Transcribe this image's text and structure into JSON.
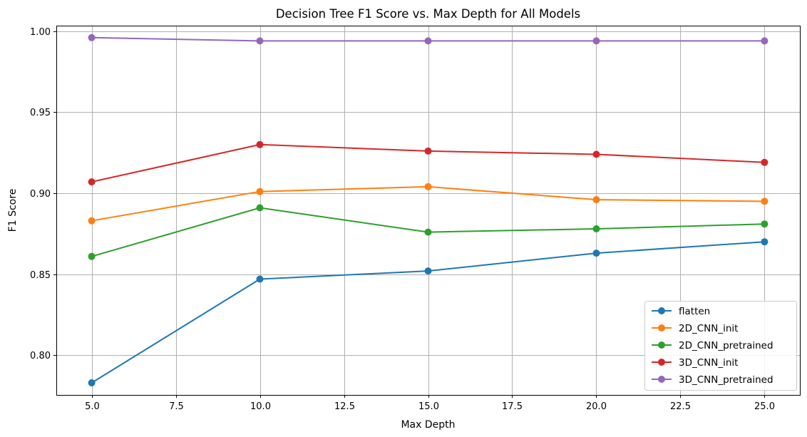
{
  "chart_data": {
    "type": "line",
    "title": "Decision Tree F1 Score vs. Max Depth for All Models",
    "xlabel": "Max Depth",
    "ylabel": "F1 Score",
    "x": [
      5,
      10,
      15,
      20,
      25
    ],
    "xlim": [
      3.95,
      26.05
    ],
    "ylim": [
      0.7755,
      1.0034
    ],
    "xticks": [
      5.0,
      7.5,
      10.0,
      12.5,
      15.0,
      17.5,
      20.0,
      22.5,
      25.0
    ],
    "xtick_labels": [
      "5.0",
      "7.5",
      "10.0",
      "12.5",
      "15.0",
      "17.5",
      "20.0",
      "22.5",
      "25.0"
    ],
    "yticks": [
      0.8,
      0.85,
      0.9,
      0.95,
      1.0
    ],
    "ytick_labels": [
      "0.80",
      "0.85",
      "0.90",
      "0.95",
      "1.00"
    ],
    "grid": true,
    "legend_position": "lower-right",
    "series": [
      {
        "name": "flatten",
        "color": "#1f77b4",
        "values": [
          0.783,
          0.847,
          0.852,
          0.863,
          0.87
        ]
      },
      {
        "name": "2D_CNN_init",
        "color": "#ff7f0e",
        "values": [
          0.883,
          0.901,
          0.904,
          0.896,
          0.895
        ]
      },
      {
        "name": "2D_CNN_pretrained",
        "color": "#2ca02c",
        "values": [
          0.861,
          0.891,
          0.876,
          0.878,
          0.881
        ]
      },
      {
        "name": "3D_CNN_init",
        "color": "#d62728",
        "values": [
          0.907,
          0.93,
          0.926,
          0.924,
          0.919
        ]
      },
      {
        "name": "3D_CNN_pretrained",
        "color": "#9467bd",
        "values": [
          0.996,
          0.994,
          0.994,
          0.994,
          0.994
        ]
      }
    ]
  }
}
